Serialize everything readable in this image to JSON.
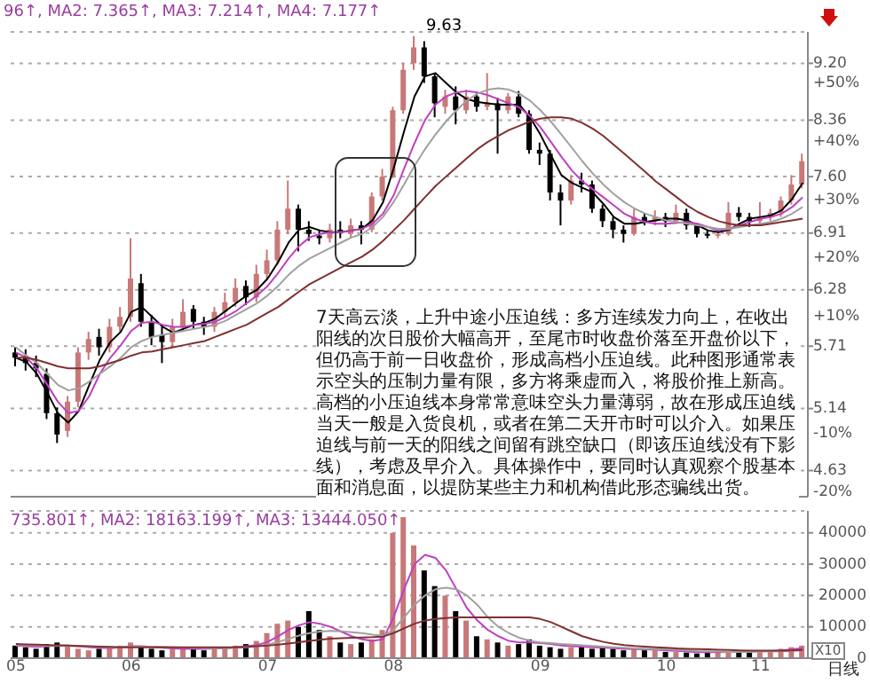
{
  "chart_data": [
    {
      "type": "candlestick",
      "categories": [
        "05",
        null,
        null,
        null,
        null,
        null,
        null,
        null,
        null,
        null,
        null,
        "06",
        null,
        null,
        null,
        null,
        null,
        null,
        null,
        null,
        null,
        null,
        null,
        null,
        "07",
        null,
        null,
        null,
        null,
        null,
        null,
        null,
        null,
        null,
        null,
        null,
        "08",
        null,
        null,
        null,
        null,
        null,
        null,
        null,
        null,
        null,
        null,
        null,
        null,
        null,
        "09",
        null,
        null,
        null,
        null,
        null,
        null,
        null,
        null,
        null,
        null,
        null,
        "10",
        null,
        null,
        null,
        null,
        null,
        null,
        null,
        null,
        "11",
        null,
        null,
        null,
        null
      ],
      "ohlc": [
        [
          5.65,
          5.7,
          5.52,
          5.6
        ],
        [
          5.62,
          5.68,
          5.48,
          5.55
        ],
        [
          5.55,
          5.62,
          5.42,
          5.5
        ],
        [
          5.45,
          5.5,
          5.05,
          5.1
        ],
        [
          5.1,
          5.15,
          4.85,
          4.92
        ],
        [
          4.95,
          5.25,
          4.9,
          5.2
        ],
        [
          5.2,
          5.7,
          5.15,
          5.65
        ],
        [
          5.65,
          5.85,
          5.58,
          5.78
        ],
        [
          5.8,
          5.88,
          5.62,
          5.7
        ],
        [
          5.7,
          5.98,
          5.65,
          5.9
        ],
        [
          5.9,
          6.1,
          5.85,
          6.0
        ],
        [
          6.0,
          6.85,
          5.95,
          6.4
        ],
        [
          6.35,
          6.45,
          5.9,
          5.95
        ],
        [
          5.95,
          6.02,
          5.72,
          5.8
        ],
        [
          5.82,
          5.9,
          5.55,
          5.75
        ],
        [
          5.75,
          5.98,
          5.7,
          5.9
        ],
        [
          5.9,
          6.18,
          5.85,
          6.05
        ],
        [
          6.08,
          6.12,
          5.88,
          5.95
        ],
        [
          5.95,
          6.0,
          5.82,
          5.9
        ],
        [
          5.9,
          6.1,
          5.85,
          6.05
        ],
        [
          6.05,
          6.25,
          6.0,
          6.15
        ],
        [
          6.15,
          6.4,
          6.1,
          6.3
        ],
        [
          6.32,
          6.38,
          6.12,
          6.2
        ],
        [
          6.2,
          6.55,
          6.15,
          6.45
        ],
        [
          6.45,
          6.72,
          6.4,
          6.6
        ],
        [
          6.6,
          7.05,
          6.55,
          6.95
        ],
        [
          6.95,
          7.55,
          6.9,
          7.2
        ],
        [
          7.2,
          7.25,
          6.7,
          6.95
        ],
        [
          6.95,
          7.05,
          6.82,
          6.9
        ],
        [
          6.88,
          6.95,
          6.78,
          6.85
        ],
        [
          6.85,
          7.02,
          6.8,
          6.95
        ],
        [
          6.95,
          7.05,
          6.85,
          6.92
        ],
        [
          6.9,
          7.08,
          6.85,
          7.0
        ],
        [
          7.0,
          7.05,
          6.78,
          6.95
        ],
        [
          6.95,
          7.4,
          6.92,
          7.35
        ],
        [
          7.35,
          7.7,
          7.3,
          7.6
        ],
        [
          7.6,
          8.55,
          7.58,
          8.5
        ],
        [
          8.5,
          9.2,
          8.45,
          9.1
        ],
        [
          9.2,
          9.63,
          9.1,
          9.45
        ],
        [
          9.45,
          9.55,
          8.9,
          9.0
        ],
        [
          9.0,
          9.05,
          8.4,
          8.6
        ],
        [
          8.55,
          8.8,
          8.45,
          8.7
        ],
        [
          8.7,
          8.85,
          8.3,
          8.5
        ],
        [
          8.5,
          8.8,
          8.45,
          8.7
        ],
        [
          8.7,
          8.75,
          8.48,
          8.55
        ],
        [
          8.55,
          9.05,
          8.5,
          8.6
        ],
        [
          8.6,
          8.68,
          7.9,
          8.5
        ],
        [
          8.5,
          8.75,
          8.45,
          8.7
        ],
        [
          8.7,
          8.78,
          8.4,
          8.45
        ],
        [
          8.45,
          8.5,
          7.9,
          7.95
        ],
        [
          7.95,
          8.05,
          7.75,
          7.9
        ],
        [
          7.9,
          7.95,
          7.3,
          7.4
        ],
        [
          7.4,
          7.5,
          7.0,
          7.3
        ],
        [
          7.3,
          7.62,
          7.25,
          7.55
        ],
        [
          7.55,
          7.65,
          7.4,
          7.5
        ],
        [
          7.5,
          7.55,
          7.15,
          7.2
        ],
        [
          7.2,
          7.25,
          6.98,
          7.05
        ],
        [
          7.05,
          7.1,
          6.85,
          6.95
        ],
        [
          6.95,
          7.0,
          6.8,
          6.9
        ],
        [
          6.9,
          7.2,
          6.88,
          7.1
        ],
        [
          7.1,
          7.15,
          7.0,
          7.05
        ],
        [
          7.05,
          7.18,
          7.0,
          7.1
        ],
        [
          7.1,
          7.15,
          6.98,
          7.05
        ],
        [
          7.05,
          7.25,
          7.02,
          7.15
        ],
        [
          7.15,
          7.2,
          6.95,
          7.0
        ],
        [
          7.0,
          7.02,
          6.86,
          6.9
        ],
        [
          6.9,
          6.94,
          6.85,
          6.88
        ],
        [
          6.88,
          6.95,
          6.85,
          6.9
        ],
        [
          6.9,
          7.28,
          6.88,
          7.15
        ],
        [
          7.15,
          7.22,
          7.05,
          7.1
        ],
        [
          7.1,
          7.15,
          6.98,
          7.05
        ],
        [
          7.05,
          7.28,
          7.0,
          7.1
        ],
        [
          7.1,
          7.2,
          7.05,
          7.15
        ],
        [
          7.15,
          7.35,
          7.1,
          7.3
        ],
        [
          7.3,
          7.62,
          7.25,
          7.5
        ],
        [
          7.5,
          7.9,
          7.45,
          7.8
        ]
      ],
      "colors": [
        "#000000",
        "#000000",
        "#000000",
        "#000000",
        "#000000",
        "#c87878",
        "#c87878",
        "#c87878",
        "#000000",
        "#c87878",
        "#c87878",
        "#c87878",
        "#000000",
        "#000000",
        "#000000",
        "#c87878",
        "#c87878",
        "#000000",
        "#000000",
        "#c87878",
        "#c87878",
        "#c87878",
        "#000000",
        "#c87878",
        "#c87878",
        "#c87878",
        "#c87878",
        "#000000",
        "#000000",
        "#000000",
        "#c87878",
        "#000000",
        "#c87878",
        "#000000",
        "#c87878",
        "#c87878",
        "#c87878",
        "#c87878",
        "#c87878",
        "#000000",
        "#000000",
        "#c87878",
        "#000000",
        "#c87878",
        "#000000",
        "#c87878",
        "#000000",
        "#c87878",
        "#000000",
        "#000000",
        "#000000",
        "#000000",
        "#000000",
        "#c87878",
        "#000000",
        "#000000",
        "#000000",
        "#000000",
        "#000000",
        "#c87878",
        "#000000",
        "#c87878",
        "#000000",
        "#c87878",
        "#000000",
        "#000000",
        "#000000",
        "#c87878",
        "#c87878",
        "#000000",
        "#000000",
        "#c87878",
        "#c87878",
        "#c87878",
        "#c87878",
        "#c87878"
      ],
      "series": [
        {
          "type": "line",
          "color": "#000000",
          "values": [
            5.6,
            5.56,
            5.45,
            5.28,
            5.1,
            5.02,
            5.12,
            5.35,
            5.58,
            5.75,
            5.85,
            6.05,
            6.1,
            6.0,
            5.9,
            5.84,
            5.88,
            5.92,
            5.94,
            5.98,
            6.06,
            6.14,
            6.22,
            6.28,
            6.4,
            6.58,
            6.8,
            6.95,
            6.98,
            6.94,
            6.92,
            6.92,
            6.94,
            6.96,
            7.06,
            7.28,
            7.7,
            8.2,
            8.7,
            9.0,
            9.05,
            8.9,
            8.76,
            8.66,
            8.62,
            8.6,
            8.58,
            8.58,
            8.58,
            8.4,
            8.16,
            7.88,
            7.62,
            7.52,
            7.46,
            7.4,
            7.26,
            7.1,
            7.02,
            7.02,
            7.04,
            7.06,
            7.08,
            7.08,
            7.06,
            7.0,
            6.94,
            6.92,
            6.95,
            7.02,
            7.08,
            7.1,
            7.12,
            7.18,
            7.32,
            7.52
          ]
        },
        {
          "type": "line",
          "color": "#c040c0",
          "values": [
            5.65,
            5.6,
            5.5,
            5.35,
            5.2,
            5.1,
            5.12,
            5.25,
            5.45,
            5.6,
            5.72,
            5.86,
            5.94,
            5.95,
            5.92,
            5.9,
            5.9,
            5.92,
            5.93,
            5.95,
            6.0,
            6.06,
            6.14,
            6.22,
            6.32,
            6.46,
            6.62,
            6.76,
            6.86,
            6.9,
            6.92,
            6.92,
            6.94,
            6.96,
            7.02,
            7.14,
            7.36,
            7.7,
            8.04,
            8.36,
            8.58,
            8.7,
            8.76,
            8.78,
            8.76,
            8.72,
            8.66,
            8.6,
            8.54,
            8.42,
            8.26,
            8.06,
            7.86,
            7.68,
            7.54,
            7.44,
            7.34,
            7.24,
            7.14,
            7.08,
            7.04,
            7.02,
            7.02,
            7.03,
            7.04,
            7.02,
            6.98,
            6.94,
            6.96,
            7.0,
            7.04,
            7.08,
            7.1,
            7.14,
            7.22,
            7.34
          ]
        },
        {
          "type": "line",
          "color": "#a0a0a0",
          "values": [
            5.7,
            5.62,
            5.55,
            5.45,
            5.35,
            5.3,
            5.32,
            5.38,
            5.45,
            5.52,
            5.6,
            5.7,
            5.76,
            5.8,
            5.82,
            5.84,
            5.86,
            5.88,
            5.9,
            5.92,
            5.96,
            6.02,
            6.08,
            6.14,
            6.22,
            6.32,
            6.44,
            6.54,
            6.62,
            6.68,
            6.74,
            6.8,
            6.86,
            6.9,
            6.98,
            7.1,
            7.28,
            7.5,
            7.74,
            7.96,
            8.16,
            8.34,
            8.5,
            8.64,
            8.74,
            8.8,
            8.82,
            8.8,
            8.74,
            8.64,
            8.5,
            8.34,
            8.16,
            7.98,
            7.8,
            7.64,
            7.5,
            7.38,
            7.28,
            7.2,
            7.14,
            7.1,
            7.06,
            7.04,
            7.02,
            7.0,
            6.98,
            6.96,
            6.96,
            6.98,
            7.0,
            7.02,
            7.04,
            7.08,
            7.14,
            7.22
          ]
        },
        {
          "type": "line",
          "color": "#803030",
          "values": [
            5.6,
            5.6,
            5.58,
            5.55,
            5.52,
            5.5,
            5.5,
            5.5,
            5.52,
            5.55,
            5.58,
            5.62,
            5.65,
            5.66,
            5.68,
            5.7,
            5.72,
            5.74,
            5.76,
            5.8,
            5.84,
            5.88,
            5.92,
            5.98,
            6.04,
            6.1,
            6.18,
            6.26,
            6.34,
            6.4,
            6.46,
            6.52,
            6.58,
            6.64,
            6.72,
            6.82,
            6.94,
            7.06,
            7.2,
            7.34,
            7.48,
            7.6,
            7.72,
            7.84,
            7.96,
            8.06,
            8.14,
            8.22,
            8.28,
            8.34,
            8.38,
            8.4,
            8.4,
            8.38,
            8.32,
            8.24,
            8.14,
            8.02,
            7.9,
            7.78,
            7.66,
            7.54,
            7.44,
            7.34,
            7.24,
            7.16,
            7.1,
            7.05,
            7.02,
            7.0,
            7.0,
            7.0,
            7.02,
            7.04,
            7.06,
            7.08
          ]
        }
      ],
      "log": true,
      "ylim": [
        4.43,
        9.7
      ],
      "yticks": [
        {
          "value": 9.2,
          "label": "9.20"
        },
        {
          "value": 8.36,
          "label": "8.36"
        },
        {
          "value": 7.6,
          "label": "7.60"
        },
        {
          "value": 6.91,
          "label": "6.91"
        },
        {
          "value": 6.28,
          "label": "6.28"
        },
        {
          "value": 5.71,
          "label": "5.71"
        },
        {
          "value": 5.14,
          "label": "5.14"
        },
        {
          "value": 4.63,
          "label": "4.63"
        }
      ],
      "y2lim": [
        -20.9,
        58.7
      ],
      "y2ticks": [
        {
          "value": 50,
          "label": "+50%"
        },
        {
          "value": 40,
          "label": "+40%"
        },
        {
          "value": 30,
          "label": "+30%"
        },
        {
          "value": 20,
          "label": "+20%"
        },
        {
          "value": 10,
          "label": "+10%"
        },
        {
          "value": -10,
          "label": "-10%"
        },
        {
          "value": -20,
          "label": "-20%"
        }
      ],
      "grid": "y",
      "tick_labels": "y",
      "annotations": [
        "96↑, MA2: 7.365↑, MA3: 7.214↑, MA4: 7.177↑",
        "9.63",
        "7天高云淡，上升中途小压迫线：多方连续发力向上，在收出阳线的次日股价大幅高开，至尾市时收盘价落至开盘价以下，但仍高于前一日收盘价，形成高档小压迫线。此种图形通常表示空头的压制力量有限，多方将乘虚而入，将股价推上新高。高档的小压迫线本身常常意味空头力量薄弱，故在形成压迫线当天一般是入货良机，或者在第二天开市时可以介入。如果压迫线与前一天的阳线之间留有跳空缺口（即该压迫线没有下影线），考虑及早介入。具体操作中，要同时认真观察个股基本面和消息面，以提防某些主力和机构借此形态骗线出货。"
      ]
    },
    {
      "type": "bar",
      "categories": [
        "05",
        null,
        null,
        null,
        null,
        null,
        null,
        null,
        null,
        null,
        null,
        "06",
        null,
        null,
        null,
        null,
        null,
        null,
        null,
        null,
        null,
        null,
        null,
        null,
        "07",
        null,
        null,
        null,
        null,
        null,
        null,
        null,
        null,
        null,
        null,
        null,
        "08",
        null,
        null,
        null,
        null,
        null,
        null,
        null,
        null,
        null,
        null,
        null,
        null,
        null,
        "09",
        null,
        null,
        null,
        null,
        null,
        null,
        null,
        null,
        null,
        null,
        null,
        "10",
        null,
        null,
        null,
        null,
        null,
        null,
        null,
        null,
        "11",
        null,
        null,
        null,
        null
      ],
      "values": [
        4000,
        3500,
        3000,
        4500,
        5000,
        4000,
        3000,
        2500,
        3000,
        3500,
        4000,
        5000,
        3500,
        3000,
        2500,
        3000,
        3500,
        3000,
        2500,
        3000,
        3500,
        4000,
        4500,
        5500,
        8000,
        11000,
        12000,
        10000,
        15000,
        9000,
        7000,
        5000,
        4500,
        5000,
        6000,
        9000,
        40000,
        45000,
        36000,
        28000,
        23000,
        20000,
        15000,
        12000,
        7000,
        6000,
        5000,
        4000,
        4500,
        6000,
        4000,
        3500,
        3000,
        3500,
        4000,
        3000,
        3500,
        3000,
        2500,
        3000,
        2500,
        2500,
        2000,
        2000,
        1800,
        1500,
        2000,
        1800,
        2200,
        2500,
        2000,
        2500,
        2200,
        3000,
        3500,
        4000
      ],
      "colors": [
        "#000000",
        "#000000",
        "#000000",
        "#000000",
        "#000000",
        "#c87878",
        "#c87878",
        "#c87878",
        "#000000",
        "#c87878",
        "#c87878",
        "#c87878",
        "#000000",
        "#000000",
        "#000000",
        "#c87878",
        "#c87878",
        "#000000",
        "#000000",
        "#c87878",
        "#c87878",
        "#c87878",
        "#000000",
        "#c87878",
        "#c87878",
        "#c87878",
        "#c87878",
        "#000000",
        "#000000",
        "#000000",
        "#c87878",
        "#000000",
        "#c87878",
        "#000000",
        "#c87878",
        "#c87878",
        "#c87878",
        "#c87878",
        "#c87878",
        "#000000",
        "#000000",
        "#c87878",
        "#000000",
        "#c87878",
        "#000000",
        "#c87878",
        "#000000",
        "#c87878",
        "#000000",
        "#000000",
        "#000000",
        "#000000",
        "#000000",
        "#c87878",
        "#000000",
        "#000000",
        "#000000",
        "#000000",
        "#000000",
        "#c87878",
        "#000000",
        "#c87878",
        "#000000",
        "#c87878",
        "#000000",
        "#000000",
        "#000000",
        "#c87878",
        "#c87878",
        "#000000",
        "#000000",
        "#c87878",
        "#c87878",
        "#c87878",
        "#c87878",
        "#c87878"
      ],
      "series": [
        {
          "type": "line",
          "color": "#c040c0",
          "values": [
            4000,
            3800,
            3600,
            3800,
            4000,
            4000,
            3800,
            3500,
            3300,
            3200,
            3500,
            3800,
            3800,
            3600,
            3300,
            3100,
            3000,
            3000,
            3000,
            3100,
            3200,
            3500,
            3800,
            4200,
            5200,
            7000,
            9000,
            10500,
            11500,
            11000,
            10000,
            8500,
            7000,
            6000,
            5500,
            6000,
            13000,
            22000,
            30000,
            33000,
            32000,
            28000,
            22000,
            16000,
            12000,
            9000,
            7000,
            5500,
            5000,
            5000,
            4800,
            4500,
            4000,
            3800,
            3700,
            3500,
            3400,
            3200,
            3000,
            2900,
            2800,
            2700,
            2500,
            2300,
            2100,
            1900,
            1900,
            1900,
            2000,
            2100,
            2200,
            2300,
            2300,
            2500,
            2800,
            3200
          ]
        },
        {
          "type": "line",
          "color": "#a0a0a0",
          "values": [
            4200,
            4100,
            4000,
            3900,
            3900,
            3900,
            3800,
            3700,
            3600,
            3500,
            3500,
            3600,
            3700,
            3700,
            3600,
            3500,
            3400,
            3300,
            3200,
            3200,
            3200,
            3300,
            3500,
            3800,
            4300,
            5200,
            6200,
            7200,
            8000,
            8500,
            8700,
            8600,
            8300,
            8000,
            7500,
            7200,
            9000,
            13000,
            17000,
            20000,
            22000,
            22500,
            22000,
            20000,
            17000,
            13000,
            10000,
            8000,
            6500,
            5500,
            5000,
            4800,
            4500,
            4300,
            4100,
            3900,
            3700,
            3500,
            3300,
            3100,
            3000,
            2900,
            2800,
            2700,
            2500,
            2300,
            2200,
            2100,
            2000,
            2000,
            2000,
            2100,
            2100,
            2200,
            2300,
            2500
          ]
        },
        {
          "type": "line",
          "color": "#803030",
          "values": [
            4500,
            4400,
            4300,
            4200,
            4100,
            4000,
            3900,
            3800,
            3700,
            3600,
            3500,
            3500,
            3500,
            3500,
            3500,
            3500,
            3500,
            3500,
            3500,
            3500,
            3500,
            3500,
            3600,
            3800,
            4000,
            4300,
            4700,
            5100,
            5500,
            5900,
            6200,
            6400,
            6500,
            6600,
            6700,
            6900,
            8000,
            9500,
            11000,
            12000,
            12500,
            12800,
            13000,
            13000,
            13000,
            13000,
            13000,
            13000,
            13000,
            13000,
            12500,
            11500,
            10000,
            8500,
            7000,
            6000,
            5200,
            4600,
            4200,
            3900,
            3700,
            3500,
            3300,
            3100,
            3000,
            2900,
            2800,
            2700,
            2600,
            2500,
            2400,
            2400,
            2400,
            2400,
            2500,
            2600
          ]
        }
      ],
      "ylim": [
        0,
        47000
      ],
      "yticks": [
        0,
        10000,
        20000,
        30000,
        40000
      ],
      "grid": "y",
      "annotations": [
        "735.801↑, MA2: 18163.199↑, MA3: 13444.050↑",
        "X10",
        "日线"
      ]
    }
  ]
}
